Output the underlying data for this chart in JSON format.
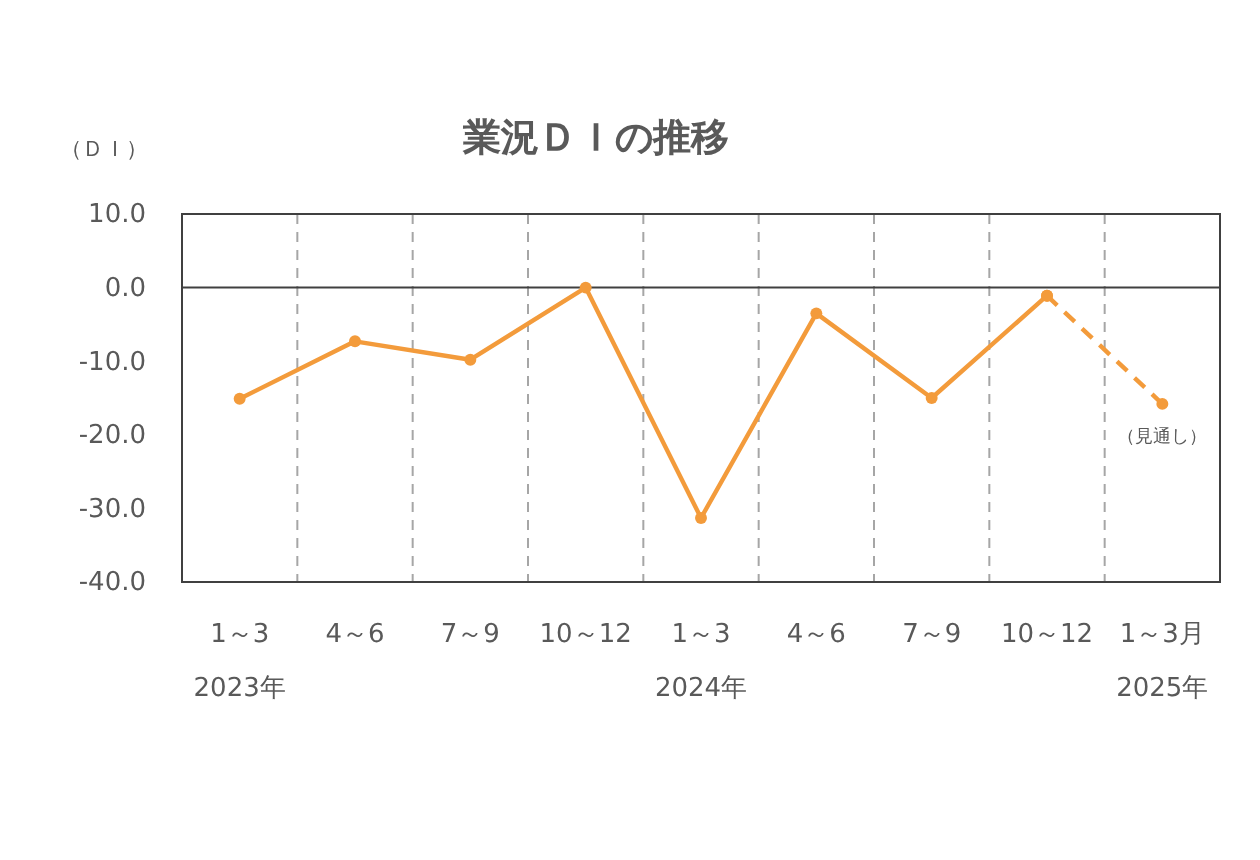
{
  "chart_data": {
    "type": "line",
    "title": "業況ＤＩの推移",
    "ylabel": "（ＤＩ）",
    "categories": [
      "1～3\n2023年",
      "4～6",
      "7～9",
      "10～12",
      "1～3\n2024年",
      "4～6",
      "7～9",
      "10～12",
      "1～3月\n2025年"
    ],
    "series": [
      {
        "color": "#f39b3b",
        "line_style": "solid",
        "values": [
          -15.1,
          -7.3,
          -9.8,
          0.0,
          -31.3,
          -3.5,
          -15.0,
          -1.1,
          null
        ]
      },
      {
        "color": "#f39b3b",
        "line_style": "dashed",
        "values": [
          null,
          null,
          null,
          null,
          null,
          null,
          null,
          -1.1,
          -15.8
        ]
      }
    ],
    "ylim": [
      -40,
      10
    ],
    "yticks": [
      {
        "value": -40,
        "label": "-40.0"
      },
      {
        "value": -30,
        "label": "-30.0"
      },
      {
        "value": -20,
        "label": "-20.0"
      },
      {
        "value": -10,
        "label": "-10.0"
      },
      {
        "value": 0,
        "label": "0.0"
      },
      {
        "value": 10,
        "label": "10.0"
      }
    ],
    "ref_lines": [
      {
        "axis": "y",
        "value": 0,
        "color": "#404040"
      }
    ],
    "grid": "x",
    "marker": "circle",
    "annotations": [
      "（見通し）"
    ]
  }
}
